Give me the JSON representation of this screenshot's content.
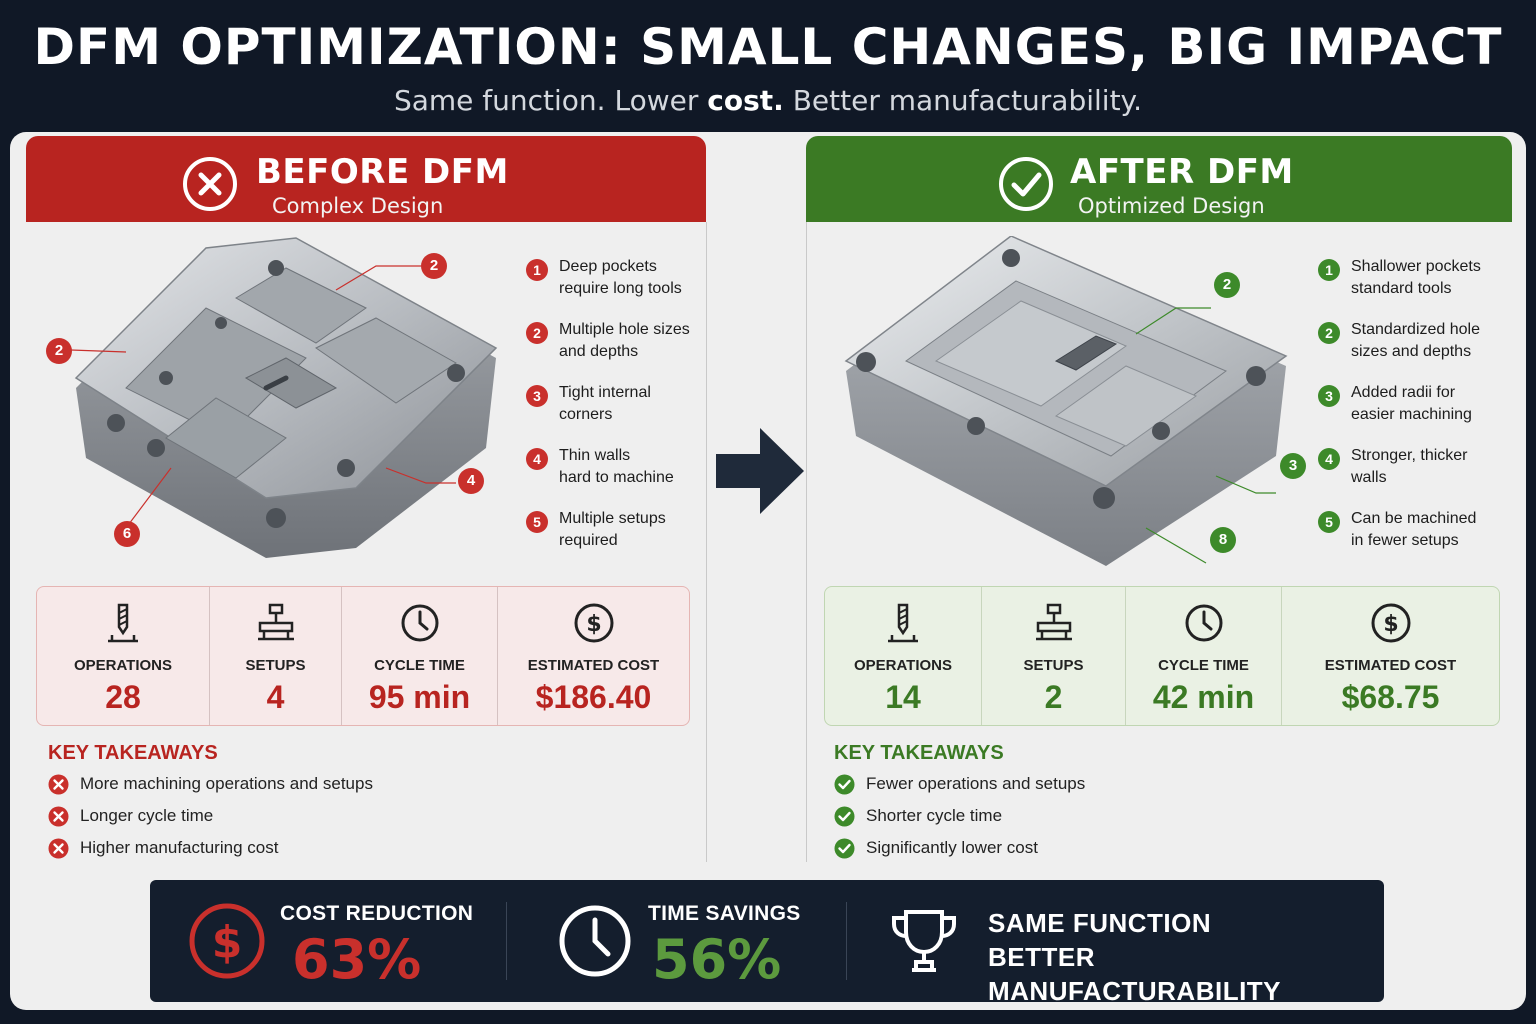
{
  "header": {
    "title": "DFM OPTIMIZATION: SMALL CHANGES, BIG IMPACT",
    "subtitle_pre": "Same function. Lower ",
    "subtitle_bold": "cost.",
    "subtitle_post": " Better manufacturability."
  },
  "colors": {
    "red": "#b82420",
    "green": "#3b7a24",
    "navy": "#141e2d"
  },
  "before": {
    "title": "BEFORE DFM",
    "subtitle": "Complex Design",
    "icon": "x-circle-icon",
    "callouts": [
      "2",
      "2",
      "4",
      "6"
    ],
    "features": [
      {
        "num": "1",
        "text": "Deep pockets\nrequire long tools"
      },
      {
        "num": "2",
        "text": "Multiple hole sizes\nand depths"
      },
      {
        "num": "3",
        "text": "Tight internal\ncorners"
      },
      {
        "num": "4",
        "text": "Thin walls\nhard to machine"
      },
      {
        "num": "5",
        "text": "Multiple setups\nrequired"
      }
    ],
    "metrics": [
      {
        "label": "OPERATIONS",
        "value": "28",
        "icon": "end-mill-icon"
      },
      {
        "label": "SETUPS",
        "value": "4",
        "icon": "fixture-icon"
      },
      {
        "label": "CYCLE TIME",
        "value": "95 min",
        "icon": "clock-icon"
      },
      {
        "label": "ESTIMATED COST",
        "value": "$186.40",
        "icon": "dollar-icon"
      }
    ],
    "takeaways_title": "KEY TAKEAWAYS",
    "takeaways": [
      "More machining operations and setups",
      "Longer cycle time",
      "Higher manufacturing cost"
    ]
  },
  "after": {
    "title": "AFTER DFM",
    "subtitle": "Optimized Design",
    "icon": "check-circle-icon",
    "callouts": [
      "2",
      "3",
      "8"
    ],
    "features": [
      {
        "num": "1",
        "text": "Shallower pockets\nstandard tools"
      },
      {
        "num": "2",
        "text": "Standardized hole\nsizes and depths"
      },
      {
        "num": "3",
        "text": "Added radii for\neasier machining"
      },
      {
        "num": "4",
        "text": "Stronger, thicker\nwalls"
      },
      {
        "num": "5",
        "text": "Can be machined\nin fewer setups"
      }
    ],
    "metrics": [
      {
        "label": "OPERATIONS",
        "value": "14",
        "icon": "end-mill-icon"
      },
      {
        "label": "SETUPS",
        "value": "2",
        "icon": "fixture-icon"
      },
      {
        "label": "CYCLE TIME",
        "value": "42 min",
        "icon": "clock-icon"
      },
      {
        "label": "ESTIMATED COST",
        "value": "$68.75",
        "icon": "dollar-icon"
      }
    ],
    "takeaways_title": "KEY TAKEAWAYS",
    "takeaways": [
      "Fewer operations and setups",
      "Shorter cycle time",
      "Significantly lower cost"
    ]
  },
  "summary": {
    "cost_label": "COST REDUCTION",
    "cost_value": "63%",
    "time_label": "TIME SAVINGS",
    "time_value": "56%",
    "function_line1": "SAME FUNCTION",
    "function_line2": "BETTER MANUFACTURABILITY"
  }
}
